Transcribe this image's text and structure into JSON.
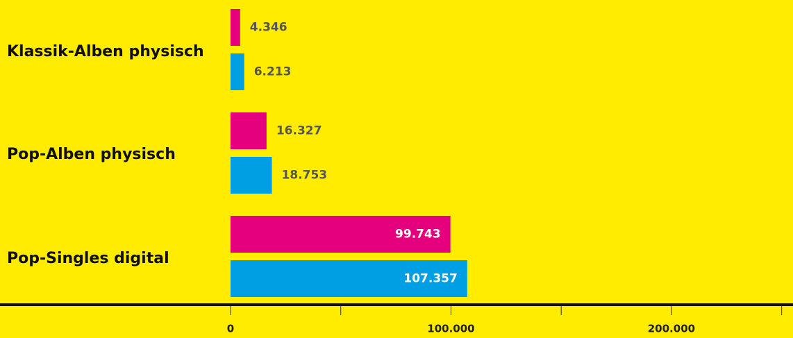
{
  "chart_data": {
    "type": "bar",
    "orientation": "horizontal",
    "categories": [
      "Klassik-Alben physisch",
      "Pop-Alben physisch",
      "Pop-Singles digital"
    ],
    "series": [
      {
        "values": [
          4346,
          16327,
          99743
        ],
        "labels": [
          "4.346",
          "16.327",
          "99.743"
        ],
        "color": "#e5007d"
      },
      {
        "values": [
          6213,
          18753,
          107357
        ],
        "labels": [
          "6.213",
          "18.753",
          "107.357"
        ],
        "color": "#009fe3"
      }
    ],
    "x_ticks": [
      {
        "value": 0,
        "label": "0"
      },
      {
        "value": 100000,
        "label": "100.000"
      },
      {
        "value": 200000,
        "label": "200.000"
      }
    ],
    "minor_ticks": [
      50000,
      150000,
      250000
    ],
    "xlim": [
      0,
      252000
    ],
    "grid": false,
    "legend": "none",
    "background": "#ffec00",
    "inside_label_color": "#ffffff",
    "outside_label_color": "#555555"
  }
}
